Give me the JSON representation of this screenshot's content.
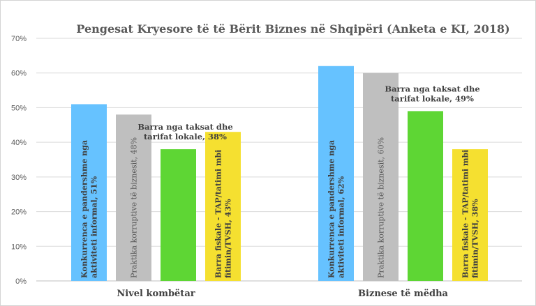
{
  "chart_data": {
    "type": "bar",
    "title": "Pengesat Kryesore të të Bërit Biznes në Shqipëri (Anketa e KI, 2018)",
    "categories": [
      "Nivel kombëtar",
      "Biznese të mëdha"
    ],
    "ylim": [
      0,
      70
    ],
    "yticks": [
      "0%",
      "10%",
      "20%",
      "30%",
      "40%",
      "50%",
      "60%",
      "70%"
    ],
    "grid": true,
    "legend": "none",
    "series": [
      {
        "color": "#66c2ff",
        "label_color": "#404040",
        "label_style": "bold",
        "values": [
          51,
          62
        ],
        "labels": [
          [
            "Konkurrenca e pandershme nga",
            "aktiviteti informal, 51%"
          ],
          [
            "Konkurrenca e pandershme nga",
            "aktiviteti informal, 62%"
          ]
        ]
      },
      {
        "color": "#bfbfbf",
        "label_color": "#595959",
        "label_style": "normal",
        "values": [
          48,
          60
        ],
        "labels": [
          [
            "Praktika korruptive të biznesit, 48%"
          ],
          [
            "Praktika korruptive të biznesit, 60%"
          ]
        ]
      },
      {
        "color": "#5ed634",
        "label_color": "#404040",
        "label_style": "bold",
        "values": [
          38,
          49
        ],
        "labels": [
          [
            "Barra nga taksat dhe",
            "tarifat lokale, 38%"
          ],
          [
            "Barra nga taksat dhe",
            "tarifat lokale, 49%"
          ]
        ]
      },
      {
        "color": "#f5e030",
        "label_color": "#404040",
        "label_style": "bold",
        "values": [
          43,
          38
        ],
        "labels": [
          [
            "Barra fiskale - TAP/tatimi mbi",
            "fitimin/TVSH, 43%"
          ],
          [
            "Barra fiskale - TAP/tatimi mbi",
            "fitimin/TVSH, 38%"
          ]
        ]
      }
    ]
  }
}
